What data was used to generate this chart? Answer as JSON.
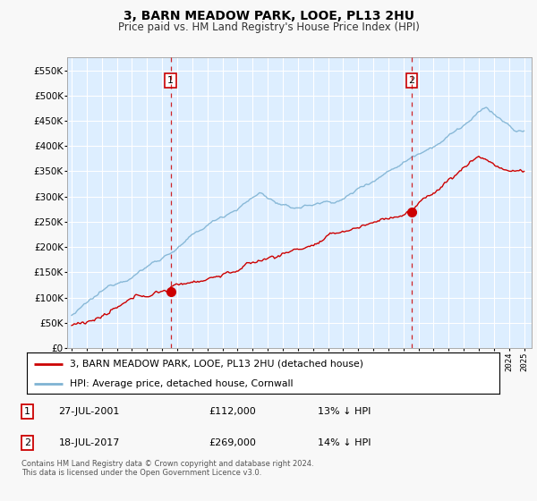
{
  "title": "3, BARN MEADOW PARK, LOOE, PL13 2HU",
  "subtitle": "Price paid vs. HM Land Registry's House Price Index (HPI)",
  "legend_label_red": "3, BARN MEADOW PARK, LOOE, PL13 2HU (detached house)",
  "legend_label_blue": "HPI: Average price, detached house, Cornwall",
  "sale1_date": "27-JUL-2001",
  "sale1_price": 112000,
  "sale1_year": 2001.57,
  "sale2_date": "18-JUL-2017",
  "sale2_price": 269000,
  "sale2_year": 2017.54,
  "footer": "Contains HM Land Registry data © Crown copyright and database right 2024.\nThis data is licensed under the Open Government Licence v3.0.",
  "ylim": [
    0,
    575000
  ],
  "xlim": [
    1994.7,
    2025.5
  ],
  "color_red": "#cc0000",
  "color_blue": "#7fb3d3",
  "color_bg_chart": "#ddeeff",
  "color_bg_fig": "#f8f8f8",
  "grid_color": "#ffffff"
}
